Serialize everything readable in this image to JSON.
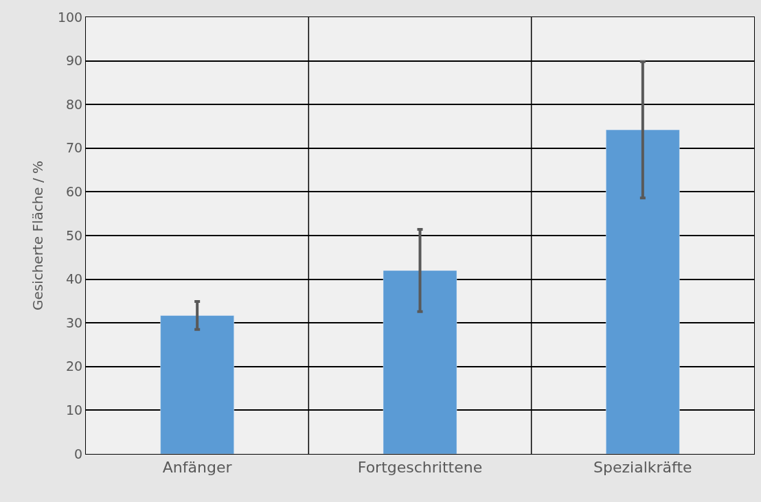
{
  "chart_data": {
    "type": "bar",
    "ylabel": "Gesicherte Fläche / %",
    "categories": [
      "Anfänger",
      "Fortgeschrittene",
      "Spezialkräfte"
    ],
    "values": [
      31.7,
      42.0,
      74.2
    ],
    "errors": [
      3.2,
      9.4,
      15.6
    ],
    "color": "#5b9bd5",
    "ylim": [
      0,
      100
    ],
    "yticks": [
      0,
      10,
      20,
      30,
      40,
      50,
      60,
      70,
      80,
      90,
      100
    ],
    "grid": true
  }
}
